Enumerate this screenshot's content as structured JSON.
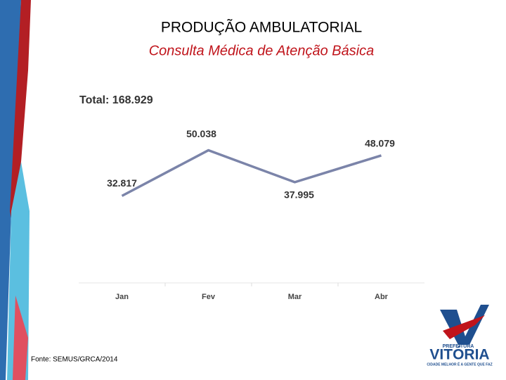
{
  "chart_data": {
    "type": "line",
    "title": "PRODUÇÃO AMBULATORIAL",
    "subtitle": "Consulta Médica de Atenção Básica",
    "annotation": "Total: 168.929",
    "categories": [
      "Jan",
      "Fev",
      "Mar",
      "Abr"
    ],
    "values": [
      32817,
      50038,
      37995,
      48079
    ],
    "value_labels": [
      "32.817",
      "50.038",
      "37.995",
      "48.079"
    ],
    "color": "#7b84a9",
    "ylim": [
      0,
      60000
    ],
    "source": "Fonte: SEMUS/GRCA/2014"
  },
  "logo": {
    "top": "PREFEITURA",
    "name": "VITÓRIA",
    "slogan": "CIDADE MELHOR É A GENTE QUE FAZ"
  }
}
